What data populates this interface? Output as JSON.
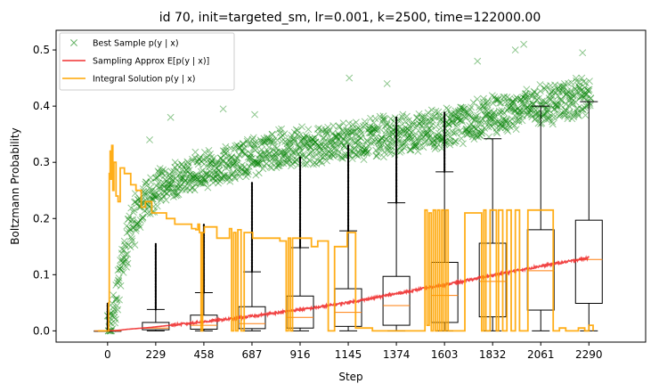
{
  "chart_data": {
    "type": "line",
    "title": "id 70, init=targeted_sm, lr=0.001, k=2500, time=122000.00",
    "xlabel": "Step",
    "ylabel": "Boltzmann Probability",
    "xlim": [
      -245,
      2560
    ],
    "ylim": [
      -0.02,
      0.535
    ],
    "x_ticks": [
      0,
      229,
      458,
      687,
      916,
      1145,
      1374,
      1603,
      1832,
      2061,
      2290
    ],
    "y_ticks": [
      0.0,
      0.1,
      0.2,
      0.3,
      0.4,
      0.5
    ],
    "y_tick_labels": [
      "0.0",
      "0.1",
      "0.2",
      "0.3",
      "0.4",
      "0.5"
    ],
    "grid": false,
    "legend_position": "top-left",
    "legend": [
      {
        "label": "Best Sample p(y | x)",
        "marker": "x",
        "color": "#008000"
      },
      {
        "label": "Sampling Approx E[p(y | x)]",
        "marker": "line",
        "color": "#f03030"
      },
      {
        "label": "Integral Solution p(y | x)",
        "marker": "line",
        "color": "#ffa500"
      }
    ],
    "series": [
      {
        "name": "Best Sample p(y | x)",
        "kind": "scatter",
        "color": "#008000",
        "trend_x": [
          0,
          20,
          40,
          60,
          80,
          100,
          130,
          160,
          200,
          250,
          300,
          400,
          500,
          600,
          700,
          800,
          900,
          1000,
          1100,
          1200,
          1300,
          1400,
          1500,
          1600,
          1700,
          1800,
          1900,
          2000,
          2100,
          2200,
          2300
        ],
        "trend_y": [
          0.0,
          0.02,
          0.06,
          0.1,
          0.14,
          0.17,
          0.2,
          0.22,
          0.24,
          0.26,
          0.265,
          0.28,
          0.29,
          0.3,
          0.31,
          0.32,
          0.325,
          0.33,
          0.335,
          0.34,
          0.345,
          0.35,
          0.355,
          0.36,
          0.37,
          0.38,
          0.39,
          0.4,
          0.405,
          0.41,
          0.42
        ],
        "spread": 0.03,
        "outliers": [
          [
            1940,
            0.5
          ],
          [
            1980,
            0.51
          ],
          [
            2260,
            0.495
          ],
          [
            1760,
            0.48
          ],
          [
            1330,
            0.44
          ],
          [
            1150,
            0.45
          ],
          [
            700,
            0.385
          ],
          [
            550,
            0.395
          ],
          [
            200,
            0.34
          ],
          [
            300,
            0.38
          ]
        ]
      },
      {
        "name": "Sampling Approx E[p(y | x)]",
        "kind": "line",
        "color": "#f03030",
        "x": [
          0,
          50,
          100,
          200,
          300,
          400,
          500,
          600,
          700,
          800,
          900,
          1000,
          1100,
          1200,
          1300,
          1400,
          1500,
          1600,
          1700,
          1800,
          1900,
          2000,
          2100,
          2200,
          2290
        ],
        "y": [
          0.0,
          0.001,
          0.003,
          0.006,
          0.01,
          0.014,
          0.018,
          0.022,
          0.027,
          0.032,
          0.037,
          0.042,
          0.048,
          0.054,
          0.061,
          0.068,
          0.075,
          0.082,
          0.089,
          0.097,
          0.104,
          0.111,
          0.118,
          0.124,
          0.13
        ]
      },
      {
        "name": "Integral Solution p(y | x)",
        "kind": "step",
        "color": "#ffa500",
        "x": [
          -45,
          0,
          5,
          8,
          12,
          15,
          20,
          25,
          30,
          40,
          50,
          60,
          80,
          110,
          135,
          160,
          180,
          210,
          280,
          320,
          400,
          420,
          430,
          437,
          445,
          452,
          460,
          520,
          580,
          590,
          600,
          610,
          620,
          635,
          650,
          690,
          820,
          850,
          860,
          870,
          880,
          970,
          1000,
          1030,
          1050,
          1080,
          1140,
          1180,
          1260,
          1340,
          1420,
          1500,
          1510,
          1520,
          1530,
          1540,
          1550,
          1560,
          1570,
          1580,
          1590,
          1600,
          1610,
          1620,
          1700,
          1780,
          1790,
          1800,
          1820,
          1850,
          1860,
          1880,
          1900,
          1920,
          1940,
          1960,
          2000,
          2060,
          2100,
          2120,
          2150,
          2180,
          2220,
          2240,
          2270,
          2290,
          2310
        ],
        "y": [
          0.0,
          0.0,
          0.05,
          0.28,
          0.32,
          0.27,
          0.33,
          0.25,
          0.3,
          0.24,
          0.23,
          0.29,
          0.28,
          0.26,
          0.25,
          0.22,
          0.23,
          0.21,
          0.2,
          0.19,
          0.182,
          0.18,
          0.19,
          0.175,
          0.0,
          0.175,
          0.185,
          0.165,
          0.182,
          0.0,
          0.175,
          0.0,
          0.18,
          0.0,
          0.175,
          0.165,
          0.16,
          0.0,
          0.165,
          0.0,
          0.165,
          0.15,
          0.16,
          0.16,
          0.0,
          0.15,
          0.175,
          0.005,
          0.0,
          0.0,
          0.0,
          0.0,
          0.215,
          0.01,
          0.21,
          0.0,
          0.215,
          0.0,
          0.215,
          0.0,
          0.215,
          0.0,
          0.215,
          0.0,
          0.21,
          0.0,
          0.215,
          0.0,
          0.215,
          0.0,
          0.215,
          0.0,
          0.215,
          0.0,
          0.215,
          0.0,
          0.215,
          0.215,
          0.215,
          0.0,
          0.005,
          0.0,
          0.0,
          0.005,
          0.0,
          0.01,
          0.0
        ]
      }
    ],
    "boxplots": {
      "color_box": "#000000",
      "color_median": "#ff7f0e",
      "boxes": [
        {
          "x": 0,
          "whislo": 0.0,
          "q1": 0.0,
          "med": 0.0,
          "q3": 0.0,
          "whishi": 0.0,
          "flier_top": 0.05
        },
        {
          "x": 229,
          "whislo": 0.0,
          "q1": 0.002,
          "med": 0.005,
          "q3": 0.015,
          "whishi": 0.038,
          "flier_top": 0.155
        },
        {
          "x": 458,
          "whislo": 0.0,
          "q1": 0.003,
          "med": 0.01,
          "q3": 0.028,
          "whishi": 0.068,
          "flier_top": 0.19
        },
        {
          "x": 687,
          "whislo": 0.0,
          "q1": 0.004,
          "med": 0.013,
          "q3": 0.043,
          "whishi": 0.105,
          "flier_top": 0.265
        },
        {
          "x": 916,
          "whislo": 0.0,
          "q1": 0.005,
          "med": 0.024,
          "q3": 0.062,
          "whishi": 0.148,
          "flier_top": 0.31
        },
        {
          "x": 1145,
          "whislo": 0.0,
          "q1": 0.008,
          "med": 0.033,
          "q3": 0.075,
          "whishi": 0.178,
          "flier_top": 0.33
        },
        {
          "x": 1374,
          "whislo": 0.0,
          "q1": 0.01,
          "med": 0.045,
          "q3": 0.097,
          "whishi": 0.228,
          "flier_top": 0.38
        },
        {
          "x": 1603,
          "whislo": 0.0,
          "q1": 0.015,
          "med": 0.063,
          "q3": 0.122,
          "whishi": 0.283,
          "flier_top": 0.39
        },
        {
          "x": 1832,
          "whislo": 0.0,
          "q1": 0.025,
          "med": 0.088,
          "q3": 0.156,
          "whishi": 0.342,
          "flier_top": 0.342
        },
        {
          "x": 2061,
          "whislo": 0.0,
          "q1": 0.037,
          "med": 0.107,
          "q3": 0.18,
          "whishi": 0.4,
          "flier_top": 0.4
        },
        {
          "x": 2290,
          "whislo": 0.0,
          "q1": 0.049,
          "med": 0.127,
          "q3": 0.197,
          "whishi": 0.408,
          "flier_top": 0.408
        }
      ]
    }
  }
}
